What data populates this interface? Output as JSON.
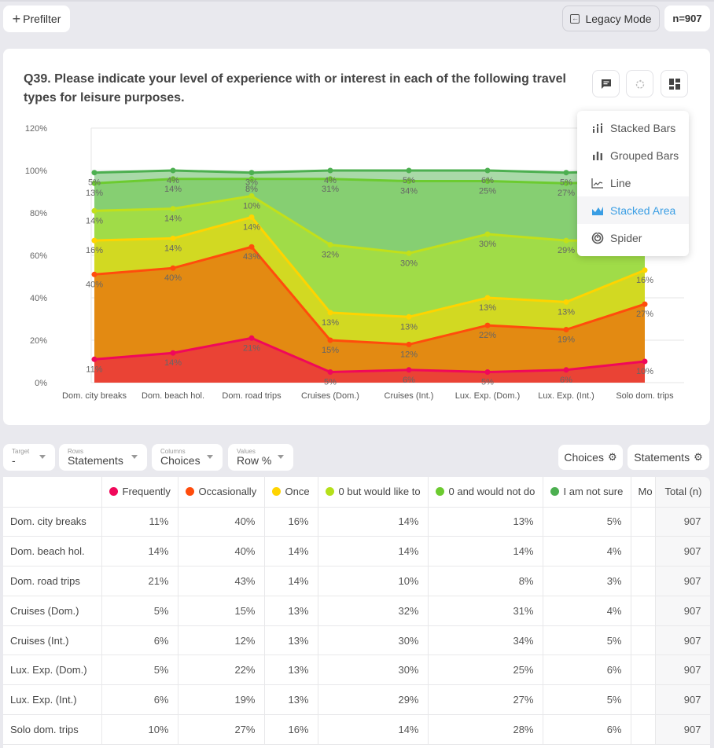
{
  "topbar": {
    "prefilter_label": "Prefilter",
    "legacy_label": "Legacy Mode",
    "n_label": "n=907"
  },
  "question": {
    "title": "Q39. Please indicate your level of experience with or interest in each of the following travel types for leisure purposes."
  },
  "chart_type_menu": {
    "items": [
      {
        "label": "Stacked Bars",
        "icon": "stacked-bars-icon",
        "active": false
      },
      {
        "label": "Grouped Bars",
        "icon": "grouped-bars-icon",
        "active": false
      },
      {
        "label": "Line",
        "icon": "line-chart-icon",
        "active": false
      },
      {
        "label": "Stacked Area",
        "icon": "stacked-area-icon",
        "active": true
      },
      {
        "label": "Spider",
        "icon": "spider-chart-icon",
        "active": false
      }
    ]
  },
  "controls": {
    "target": {
      "label": "Target",
      "value": "-"
    },
    "rows": {
      "label": "Rows",
      "value": "Statements"
    },
    "columns": {
      "label": "Columns",
      "value": "Choices"
    },
    "values": {
      "label": "Values",
      "value": "Row %"
    },
    "choices_btn": "Choices",
    "statements_btn": "Statements"
  },
  "chart_data": {
    "type": "area",
    "stacked": true,
    "title": "",
    "xlabel": "",
    "ylabel": "",
    "ylim": [
      0,
      120
    ],
    "yticks": [
      "0%",
      "20%",
      "40%",
      "60%",
      "80%",
      "100%",
      "120%"
    ],
    "ytick_values": [
      0,
      20,
      40,
      60,
      80,
      100,
      120
    ],
    "grid": true,
    "categories": [
      "Dom. city breaks",
      "Dom. beach hol.",
      "Dom. road trips",
      "Cruises (Dom.)",
      "Cruises (Int.)",
      "Lux. Exp. (Dom.)",
      "Lux. Exp. (Int.)",
      "Solo dom. trips"
    ],
    "series": [
      {
        "name": "Frequently",
        "color": "#f0085a",
        "fill": "#ea4335",
        "values": [
          11,
          14,
          21,
          5,
          6,
          5,
          6,
          10
        ]
      },
      {
        "name": "Occasionally",
        "color": "#ff4c0c",
        "fill": "#e38a12",
        "values": [
          40,
          40,
          43,
          15,
          12,
          22,
          19,
          27
        ]
      },
      {
        "name": "Once",
        "color": "#ffd400",
        "fill": "#d2d922",
        "values": [
          16,
          14,
          14,
          13,
          13,
          13,
          13,
          16
        ]
      },
      {
        "name": "0 but would like to",
        "color": "#c2e01a",
        "fill": "#a0dc48",
        "values": [
          14,
          14,
          10,
          32,
          30,
          30,
          29,
          14
        ]
      },
      {
        "name": "0 and would not do",
        "color": "#6ccb30",
        "fill": "#86cf72",
        "values": [
          13,
          14,
          8,
          31,
          34,
          25,
          27,
          28
        ]
      },
      {
        "name": "I am not sure",
        "color": "#4caf50",
        "fill": "#a9d9a8",
        "values": [
          5,
          4,
          3,
          4,
          5,
          6,
          5,
          6
        ]
      }
    ]
  },
  "table": {
    "columns": [
      {
        "label": "Frequently",
        "color": "#f0085a"
      },
      {
        "label": "Occasionally",
        "color": "#ff4c0c"
      },
      {
        "label": "Once",
        "color": "#ffd400"
      },
      {
        "label": "0 but would like to",
        "color": "#b5e01a"
      },
      {
        "label": "0 and would not do",
        "color": "#6ccb30"
      },
      {
        "label": "I am not sure",
        "color": "#4caf50"
      }
    ],
    "more_col_label": "Mo",
    "total_label": "Total (n)",
    "rows": [
      {
        "label": "Dom. city breaks",
        "cells": [
          "11%",
          "40%",
          "16%",
          "14%",
          "13%",
          "5%"
        ],
        "total": "907"
      },
      {
        "label": "Dom. beach hol.",
        "cells": [
          "14%",
          "40%",
          "14%",
          "14%",
          "14%",
          "4%"
        ],
        "total": "907"
      },
      {
        "label": "Dom. road trips",
        "cells": [
          "21%",
          "43%",
          "14%",
          "10%",
          "8%",
          "3%"
        ],
        "total": "907"
      },
      {
        "label": "Cruises (Dom.)",
        "cells": [
          "5%",
          "15%",
          "13%",
          "32%",
          "31%",
          "4%"
        ],
        "total": "907"
      },
      {
        "label": "Cruises (Int.)",
        "cells": [
          "6%",
          "12%",
          "13%",
          "30%",
          "34%",
          "5%"
        ],
        "total": "907"
      },
      {
        "label": "Lux. Exp. (Dom.)",
        "cells": [
          "5%",
          "22%",
          "13%",
          "30%",
          "25%",
          "6%"
        ],
        "total": "907"
      },
      {
        "label": "Lux. Exp. (Int.)",
        "cells": [
          "6%",
          "19%",
          "13%",
          "29%",
          "27%",
          "5%"
        ],
        "total": "907"
      },
      {
        "label": "Solo dom. trips",
        "cells": [
          "10%",
          "27%",
          "16%",
          "14%",
          "28%",
          "6%"
        ],
        "total": "907"
      }
    ]
  }
}
